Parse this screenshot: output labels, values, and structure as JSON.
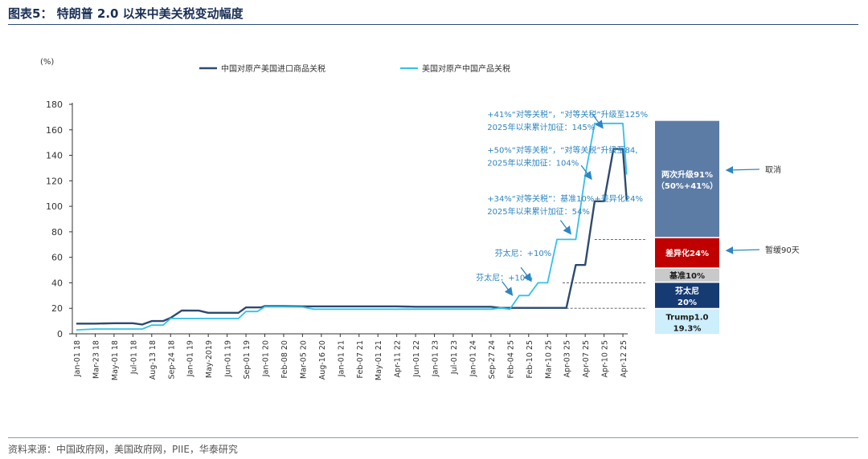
{
  "header": {
    "title": "图表5：  特朗普 2.0 以来中美关税变动幅度"
  },
  "footer": {
    "source": "资料来源：中国政府网，美国政府网，PIIE，华泰研究"
  },
  "colors": {
    "china_series": "#2e4a70",
    "us_series": "#33c0ea",
    "annotation": "#2e86c1"
  },
  "chart_data": {
    "type": "line",
    "unit_label": "(%)",
    "ylim": [
      0,
      180
    ],
    "yticks": [
      0,
      20,
      40,
      60,
      80,
      100,
      120,
      140,
      160,
      180
    ],
    "grid": false,
    "legend_position": "top",
    "xtick_labels": [
      "Jan-01 18",
      "Mar-23 18",
      "May-01 18",
      "Jul-01 18",
      "Aug-13 18",
      "Sep-24 18",
      "Jan-01 19",
      "May-2019",
      "Jun-01 19",
      "Sep-01 19",
      "Jan-01 20",
      "Feb-08 20",
      "Mar-05 20",
      "Aug-16 20",
      "Jan-01 21",
      "Feb-07 21",
      "May-01 21",
      "Apr-11 22",
      "Jun-01 22",
      "Jan-01 23",
      "Jul-01 23",
      "Jan-01 24",
      "Sep-27 24",
      "Feb-04 25",
      "Feb-10 25",
      "Mar-10 25",
      "Apr-03 25",
      "Apr-07 25",
      "Apr-10 25",
      "Apr-12 25"
    ],
    "series": [
      {
        "name": "中国对原产美国进口商品关税",
        "color": "#2e4a70",
        "values": [
          [
            0,
            8
          ],
          [
            1,
            8
          ],
          [
            2,
            8.3
          ],
          [
            3,
            8.3
          ],
          [
            3.5,
            7.3
          ],
          [
            4,
            10
          ],
          [
            4.6,
            10
          ],
          [
            5,
            12.5
          ],
          [
            5.6,
            18.3
          ],
          [
            6.5,
            18.2
          ],
          [
            7,
            16.5
          ],
          [
            8,
            16.5
          ],
          [
            8.6,
            16.5
          ],
          [
            9,
            20.7
          ],
          [
            9.8,
            20.7
          ],
          [
            10,
            21.8
          ],
          [
            11,
            21.8
          ],
          [
            12,
            21.5
          ],
          [
            13,
            21.5
          ],
          [
            14,
            21.5
          ],
          [
            15,
            21.5
          ],
          [
            16,
            21.5
          ],
          [
            17,
            21.5
          ],
          [
            18,
            21.2
          ],
          [
            19,
            21.2
          ],
          [
            20,
            21.2
          ],
          [
            21,
            21.2
          ],
          [
            22,
            21.2
          ],
          [
            22.5,
            20.3
          ],
          [
            23,
            20.3
          ],
          [
            24,
            20.3
          ],
          [
            25,
            20.3
          ],
          [
            26,
            20.3
          ],
          [
            26.5,
            54
          ],
          [
            27,
            54
          ],
          [
            27.5,
            104
          ],
          [
            28,
            104
          ],
          [
            28.5,
            145
          ],
          [
            29,
            145
          ],
          [
            29.2,
            105
          ]
        ]
      },
      {
        "name": "美国对原产中国产品关税",
        "color": "#33c0ea",
        "values": [
          [
            0,
            3.1
          ],
          [
            1,
            3.8
          ],
          [
            2,
            3.8
          ],
          [
            3,
            3.8
          ],
          [
            3.5,
            3.8
          ],
          [
            4,
            6.8
          ],
          [
            4.6,
            6.8
          ],
          [
            5,
            12
          ],
          [
            5.6,
            12
          ],
          [
            6.5,
            12
          ],
          [
            7,
            12
          ],
          [
            8,
            12
          ],
          [
            8.6,
            12
          ],
          [
            9,
            17.5
          ],
          [
            9.6,
            17.5
          ],
          [
            10,
            21.2
          ],
          [
            11,
            21.2
          ],
          [
            12,
            21
          ],
          [
            12.6,
            19.3
          ],
          [
            13,
            19.3
          ],
          [
            14,
            19.3
          ],
          [
            15,
            19.3
          ],
          [
            16,
            19.3
          ],
          [
            17,
            19.3
          ],
          [
            18,
            19.3
          ],
          [
            19,
            19.3
          ],
          [
            20,
            19.3
          ],
          [
            21,
            19.3
          ],
          [
            22,
            19.3
          ],
          [
            22.5,
            20.3
          ],
          [
            23,
            19.3
          ],
          [
            23.5,
            30
          ],
          [
            24,
            30
          ],
          [
            24.5,
            40
          ],
          [
            25,
            40
          ],
          [
            25.5,
            74
          ],
          [
            26,
            74
          ],
          [
            26.5,
            74
          ],
          [
            27,
            124
          ],
          [
            27.5,
            165
          ],
          [
            28,
            165
          ],
          [
            28.5,
            165
          ],
          [
            29,
            165
          ],
          [
            29.2,
            125
          ]
        ]
      }
    ],
    "stack_bar": {
      "segments": [
        {
          "from": 0,
          "to": 19.3,
          "color": "#cdeefb",
          "label": "Trump1.0",
          "sublabel": "19.3%",
          "text_color": "#1a1a1a"
        },
        {
          "from": 20.3,
          "to": 40,
          "color": "#163b73",
          "label": "芬太尼",
          "sublabel": "20%",
          "text_color": "#ffffff"
        },
        {
          "from": 41,
          "to": 51,
          "color": "#c9c9c9",
          "label": "基准10%",
          "sublabel": "",
          "text_color": "#1a1a1a"
        },
        {
          "from": 52,
          "to": 75,
          "color": "#c00000",
          "label": "差异化24%",
          "sublabel": "",
          "text_color": "#ffffff"
        },
        {
          "from": 76,
          "to": 167,
          "color": "#5c7ca6",
          "label": "两次升级91%",
          "sublabel": "（50%+41%）",
          "text_color": "#ffffff"
        }
      ],
      "side_labels": [
        {
          "text": "取消",
          "y": 129
        },
        {
          "text": "暂缓90天",
          "y": 66
        }
      ]
    },
    "reference_lines": [
      {
        "y": 20,
        "from_x": 22.8
      },
      {
        "y": 40,
        "from_x": 25.8
      },
      {
        "y": 74,
        "from_x": 27.5
      }
    ],
    "annotations": [
      {
        "lines": [
          "+41%“对等关税”，“对等关税”升级至125%",
          "2025年以来累计加征：145%"
        ],
        "at": [
          21.8,
          170
        ],
        "arrow_to": [
          27.9,
          162
        ]
      },
      {
        "lines": [
          "+50%“对等关税”，“对等关税”升级至84,",
          "2025年以来加征：104%"
        ],
        "at": [
          21.8,
          142
        ],
        "arrow_to": [
          27.3,
          122
        ]
      },
      {
        "lines": [
          "+34%“对等关税”：基准10%+差异化24%",
          "2025年以来累计加征：54%"
        ],
        "at": [
          21.8,
          104
        ],
        "arrow_to": [
          26.2,
          79
        ]
      },
      {
        "lines": [
          "芬太尼：+10%"
        ],
        "at": [
          22.2,
          61
        ],
        "arrow_to": [
          24.1,
          42
        ]
      },
      {
        "lines": [
          "芬太尼：+10%"
        ],
        "at": [
          21.2,
          42
        ],
        "arrow_to": [
          23.1,
          31
        ]
      }
    ]
  }
}
